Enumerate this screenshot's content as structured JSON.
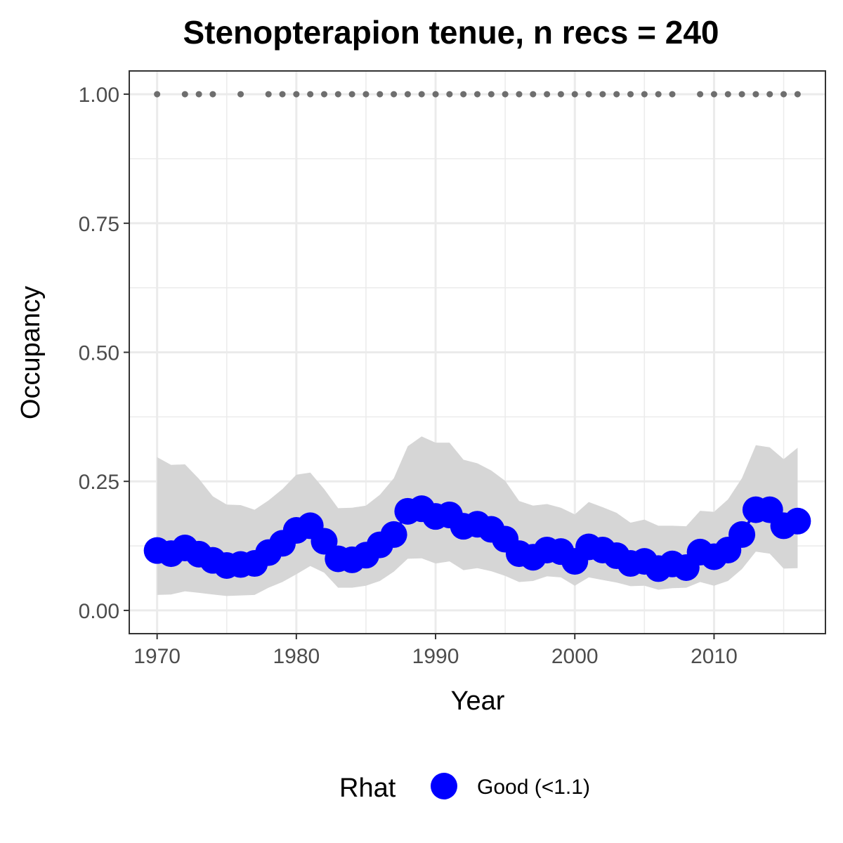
{
  "chart_data": {
    "type": "line",
    "title": "Stenopterapion tenue, n recs = 240",
    "xlabel": "Year",
    "ylabel": "Occupancy",
    "xlim": [
      1968,
      2018
    ],
    "ylim": [
      -0.045,
      1.045
    ],
    "x_ticks": [
      1970,
      1980,
      1990,
      2000,
      2010
    ],
    "x_tick_labels": [
      "1970",
      "1980",
      "1990",
      "2000",
      "2010"
    ],
    "y_ticks": [
      0,
      0.25,
      0.5,
      0.75,
      1.0
    ],
    "y_tick_labels": [
      "0.00",
      "0.25",
      "0.50",
      "0.75",
      "1.00"
    ],
    "grid": true,
    "legend": {
      "title": "Rhat",
      "position": "bottom",
      "items": [
        {
          "label": "Good (<1.1)",
          "color": "#0000ff"
        }
      ]
    },
    "colors": {
      "series": "#0000ff",
      "band": "#d6d6d6",
      "record_points": "#6e6e6e",
      "panel_border": "#333333",
      "grid": "#ebebeb"
    },
    "series": [
      {
        "name": "Good (<1.1)",
        "x": [
          1970,
          1971,
          1972,
          1973,
          1974,
          1975,
          1976,
          1977,
          1978,
          1979,
          1980,
          1981,
          1982,
          1983,
          1984,
          1985,
          1986,
          1987,
          1988,
          1989,
          1990,
          1991,
          1992,
          1993,
          1994,
          1995,
          1996,
          1997,
          1998,
          1999,
          2000,
          2001,
          2002,
          2003,
          2004,
          2005,
          2006,
          2007,
          2008,
          2009,
          2010,
          2011,
          2012,
          2013,
          2014,
          2015,
          2016
        ],
        "y": [
          0.116,
          0.11,
          0.121,
          0.109,
          0.097,
          0.087,
          0.089,
          0.091,
          0.112,
          0.13,
          0.155,
          0.164,
          0.134,
          0.1,
          0.098,
          0.107,
          0.127,
          0.147,
          0.192,
          0.197,
          0.182,
          0.185,
          0.163,
          0.167,
          0.157,
          0.138,
          0.11,
          0.103,
          0.117,
          0.114,
          0.095,
          0.123,
          0.117,
          0.106,
          0.091,
          0.095,
          0.081,
          0.09,
          0.083,
          0.113,
          0.104,
          0.117,
          0.147,
          0.195,
          0.195,
          0.164,
          0.173
        ],
        "lower": [
          0.03,
          0.031,
          0.037,
          0.034,
          0.031,
          0.028,
          0.029,
          0.03,
          0.044,
          0.055,
          0.07,
          0.086,
          0.073,
          0.044,
          0.044,
          0.048,
          0.057,
          0.075,
          0.1,
          0.101,
          0.091,
          0.095,
          0.078,
          0.082,
          0.076,
          0.067,
          0.055,
          0.057,
          0.066,
          0.064,
          0.048,
          0.064,
          0.059,
          0.054,
          0.047,
          0.048,
          0.04,
          0.043,
          0.044,
          0.055,
          0.048,
          0.057,
          0.08,
          0.114,
          0.11,
          0.081,
          0.082
        ],
        "upper": [
          0.297,
          0.282,
          0.283,
          0.255,
          0.221,
          0.205,
          0.204,
          0.195,
          0.213,
          0.235,
          0.263,
          0.267,
          0.235,
          0.198,
          0.199,
          0.203,
          0.224,
          0.256,
          0.318,
          0.337,
          0.325,
          0.325,
          0.292,
          0.285,
          0.271,
          0.251,
          0.212,
          0.203,
          0.206,
          0.199,
          0.186,
          0.21,
          0.2,
          0.189,
          0.17,
          0.176,
          0.164,
          0.164,
          0.163,
          0.193,
          0.191,
          0.215,
          0.256,
          0.32,
          0.316,
          0.293,
          0.315
        ]
      }
    ],
    "record_points": {
      "y": 1.0,
      "x": [
        1970,
        1972,
        1973,
        1974,
        1976,
        1978,
        1979,
        1980,
        1981,
        1982,
        1983,
        1984,
        1985,
        1986,
        1987,
        1988,
        1989,
        1990,
        1991,
        1992,
        1993,
        1994,
        1995,
        1996,
        1997,
        1998,
        1999,
        2000,
        2001,
        2002,
        2003,
        2004,
        2005,
        2006,
        2007,
        2009,
        2010,
        2011,
        2012,
        2013,
        2014,
        2015,
        2016
      ]
    }
  }
}
